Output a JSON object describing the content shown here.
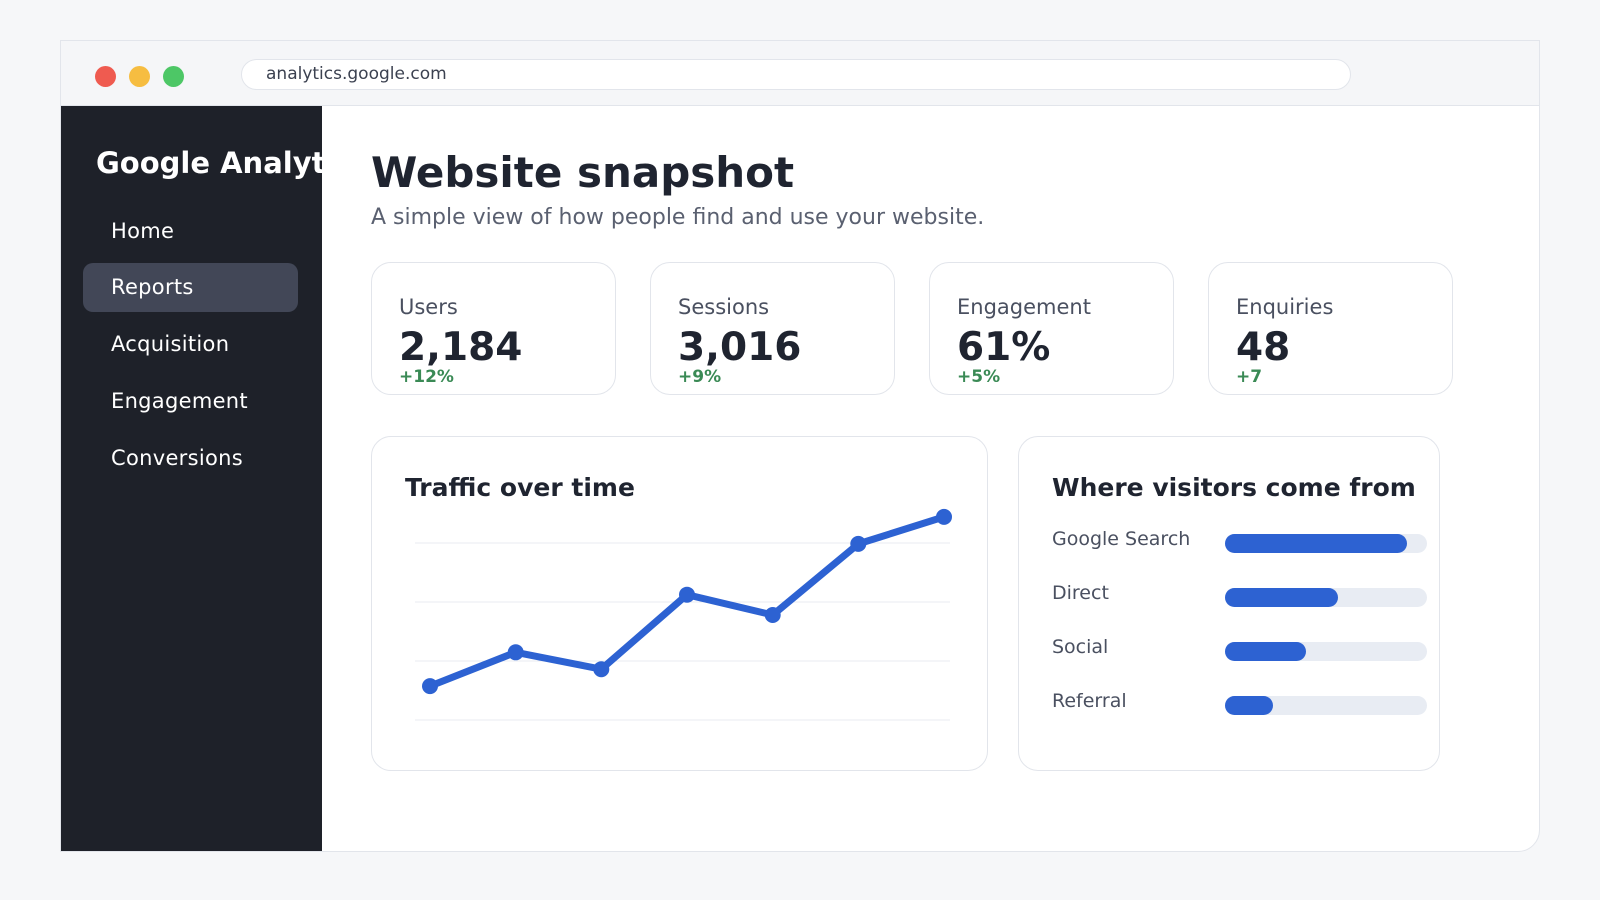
{
  "browser": {
    "url": "analytics.google.com"
  },
  "sidebar": {
    "brand": "Google Analytics",
    "items": [
      {
        "label": "Home",
        "active": false
      },
      {
        "label": "Reports",
        "active": true
      },
      {
        "label": "Acquisition",
        "active": false
      },
      {
        "label": "Engagement",
        "active": false
      },
      {
        "label": "Conversions",
        "active": false
      }
    ]
  },
  "header": {
    "title": "Website snapshot",
    "subtitle": "A simple view of how people find and use your website."
  },
  "kpis": [
    {
      "label": "Users",
      "value": "2,184",
      "delta": "+12%"
    },
    {
      "label": "Sessions",
      "value": "3,016",
      "delta": "+9%"
    },
    {
      "label": "Engagement",
      "value": "61%",
      "delta": "+5%"
    },
    {
      "label": "Enquiries",
      "value": "48",
      "delta": "+7"
    }
  ],
  "traffic": {
    "title": "Traffic over time"
  },
  "sources": {
    "title": "Where visitors come from",
    "items": [
      {
        "label": "Google Search",
        "share": 0.9
      },
      {
        "label": "Direct",
        "share": 0.56
      },
      {
        "label": "Social",
        "share": 0.4
      },
      {
        "label": "Referral",
        "share": 0.24
      }
    ]
  },
  "colors": {
    "accent": "#2d62d2",
    "positive": "#3a8a55",
    "sidebar_bg": "#1e2129"
  },
  "chart_data": {
    "type": "line",
    "x": [
      1,
      2,
      3,
      4,
      5,
      6,
      7
    ],
    "series": [
      {
        "values": [
          10,
          20,
          15,
          37,
          31,
          52,
          60
        ]
      }
    ],
    "ylim": [
      0,
      70
    ],
    "grid": true,
    "title": "Traffic over time",
    "xlabel": "",
    "ylabel": ""
  }
}
